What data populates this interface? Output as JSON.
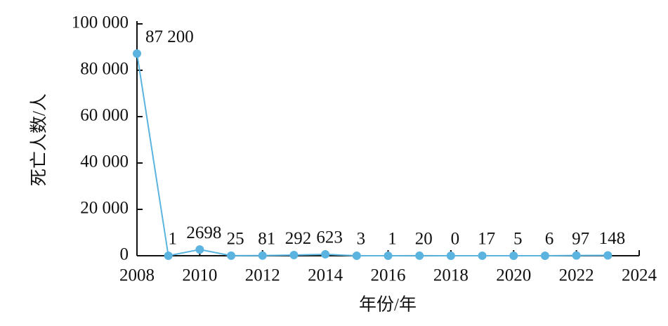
{
  "chart_data": {
    "type": "line",
    "x_label": "年份/年",
    "y_label": "死亡人数/人",
    "x": [
      2008,
      2009,
      2010,
      2011,
      2012,
      2013,
      2014,
      2015,
      2016,
      2017,
      2018,
      2019,
      2020,
      2021,
      2022,
      2023
    ],
    "series": [
      {
        "color": "#5bb4e0",
        "values": [
          87200,
          1,
          2698,
          25,
          81,
          292,
          623,
          3,
          1,
          20,
          0,
          17,
          5,
          6,
          97,
          148
        ],
        "value_labels": [
          "87 200",
          "1",
          "2698",
          "25",
          "81",
          "292",
          "623",
          "3",
          "1",
          "20",
          "0",
          "17",
          "5",
          "6",
          "97",
          "148"
        ]
      }
    ],
    "xlim": [
      2008,
      2024
    ],
    "xticks": [
      2008,
      2010,
      2012,
      2014,
      2016,
      2018,
      2020,
      2022,
      2024
    ],
    "ylim": [
      0,
      100000
    ],
    "yticks": [
      0,
      {
        "value": 20000,
        "label": "20 000"
      },
      {
        "value": 40000,
        "label": "40 000"
      },
      {
        "value": 60000,
        "label": "60 000"
      },
      {
        "value": 80000,
        "label": "80 000"
      },
      {
        "value": 100000,
        "label": "100 000"
      }
    ]
  }
}
